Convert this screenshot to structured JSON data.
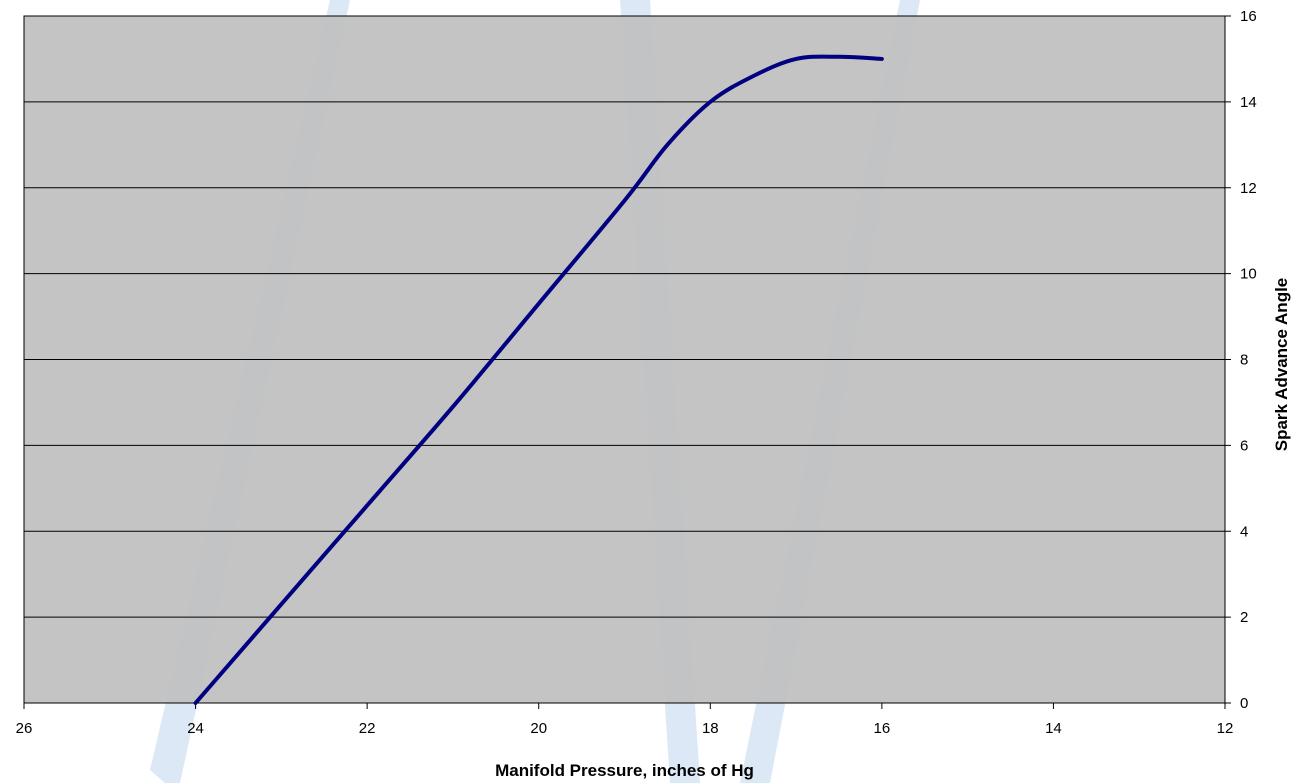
{
  "colors": {
    "background": "#ffffff",
    "plot_area": "#c0c0c0",
    "gridline": "#000000",
    "series_line": "#000080",
    "watermark": "#dce8f5"
  },
  "chart_data": {
    "type": "line",
    "title": "",
    "xlabel": "Manifold Pressure, inches of Hg",
    "ylabel": "Spark Advance Angle",
    "xlim": [
      26,
      12
    ],
    "x_reversed": true,
    "ylim": [
      0,
      16
    ],
    "x_ticks": [
      26,
      24,
      22,
      20,
      18,
      16,
      14,
      12
    ],
    "y_ticks": [
      0,
      2,
      4,
      6,
      8,
      10,
      12,
      14,
      16
    ],
    "y_axis_side": "right",
    "grid": "horizontal",
    "legend": "none",
    "series": [
      {
        "x": [
          24,
          23,
          22,
          21,
          20,
          19,
          18.5,
          18,
          17.5,
          17,
          16.5,
          16
        ],
        "y": [
          0,
          2.3,
          4.6,
          6.9,
          9.3,
          11.7,
          13,
          14,
          14.6,
          15,
          15.05,
          15
        ]
      }
    ]
  }
}
